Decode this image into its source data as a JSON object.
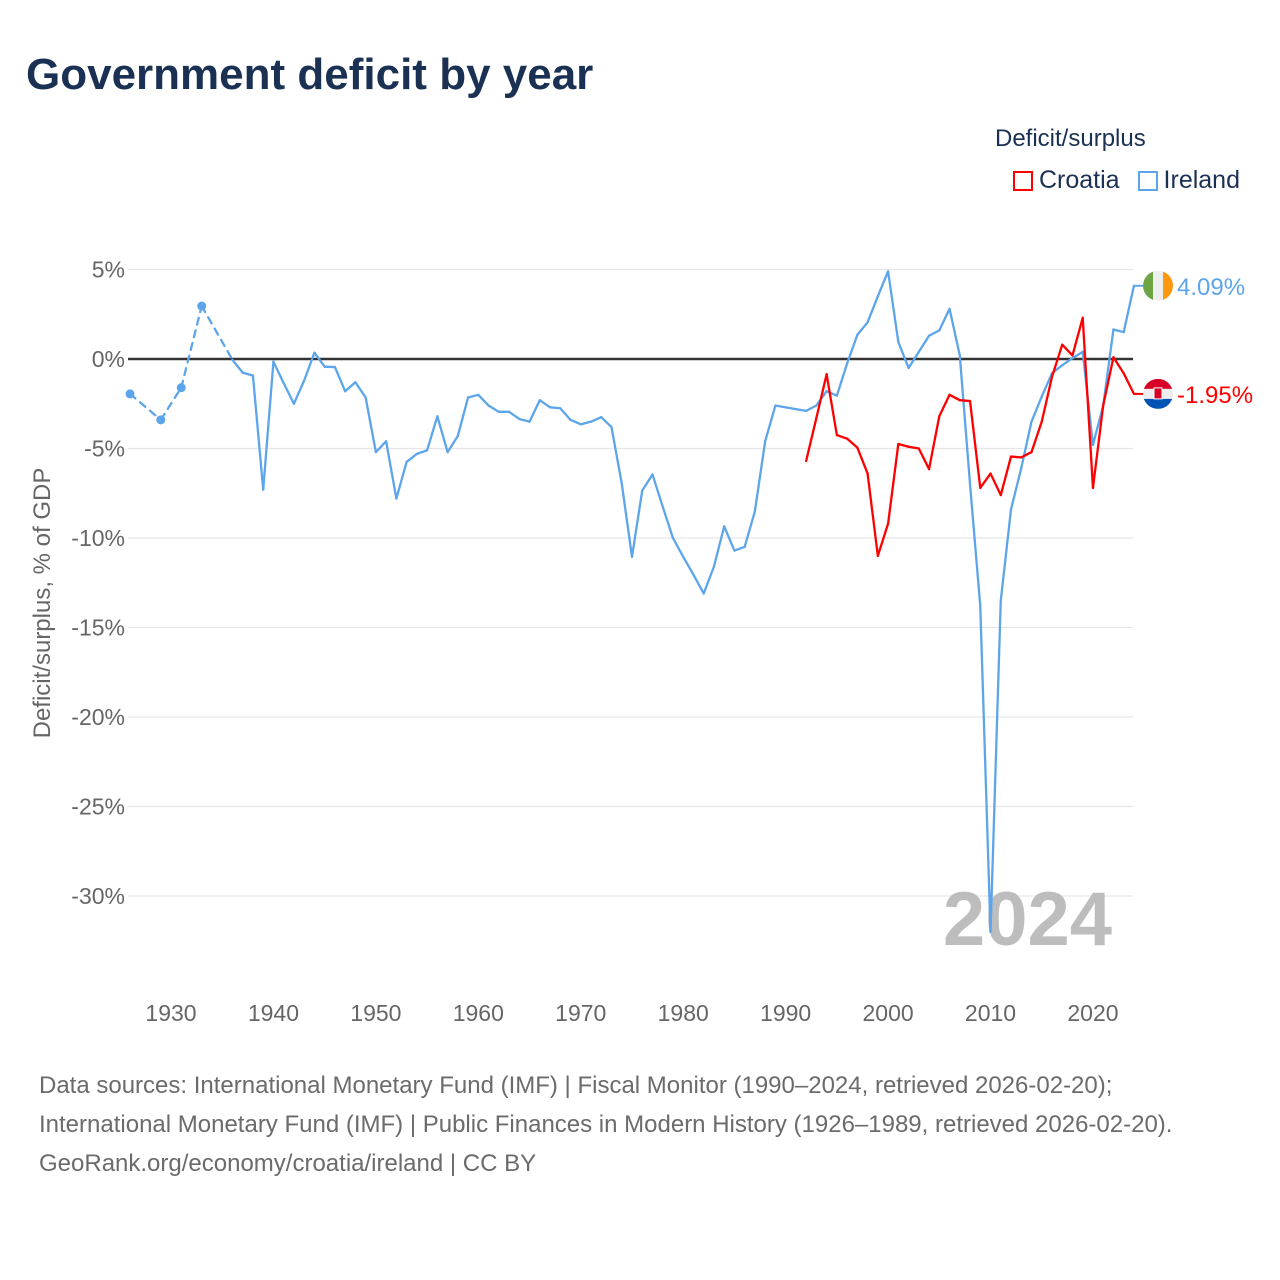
{
  "title": "Government deficit by year",
  "legend": {
    "title": "Deficit/surplus",
    "items": [
      {
        "name": "Croatia",
        "color": "#ff0000"
      },
      {
        "name": "Ireland",
        "color": "#5da5ea"
      }
    ]
  },
  "watermark_year": "2024",
  "footer": {
    "sources": "Data sources: International Monetary Fund (IMF) | Fiscal Monitor (1990–2024, retrieved 2026-02-20); International Monetary Fund (IMF) | Public Finances in Modern History (1926–1989, retrieved 2026-02-20).",
    "credit": "GeoRank.org/economy/croatia/ireland | CC BY"
  },
  "chart_data": {
    "type": "line",
    "title": "Government deficit by year",
    "xlabel": "",
    "ylabel": "Deficit/surplus, % of GDP",
    "xlim": [
      1926,
      2024
    ],
    "ylim": [
      -32,
      5
    ],
    "grid": true,
    "legend_position": "top-right",
    "xticks": [
      1930,
      1940,
      1950,
      1960,
      1970,
      1980,
      1990,
      2000,
      2010,
      2020
    ],
    "yticks": [
      {
        "v": 5,
        "label": "5%"
      },
      {
        "v": 0,
        "label": "0%"
      },
      {
        "v": -5,
        "label": "-5%"
      },
      {
        "v": -10,
        "label": "-10%"
      },
      {
        "v": -15,
        "label": "-15%"
      },
      {
        "v": -20,
        "label": "-20%"
      },
      {
        "v": -25,
        "label": "-25%"
      },
      {
        "v": -30,
        "label": "-30%"
      }
    ],
    "series": [
      {
        "name": "Ireland",
        "color": "#5da5ea",
        "end_label": "4.09%",
        "points": [
          [
            1926,
            -1.95
          ],
          [
            1929,
            -3.4
          ],
          [
            1931,
            -1.6
          ],
          [
            1933,
            2.96
          ],
          [
            1936,
            -0.05
          ],
          [
            1937,
            -0.76
          ],
          [
            1938,
            -0.93
          ],
          [
            1939,
            -7.3
          ],
          [
            1940,
            -0.15
          ],
          [
            1941,
            -1.35
          ],
          [
            1942,
            -2.5
          ],
          [
            1943,
            -1.2
          ],
          [
            1944,
            0.35
          ],
          [
            1945,
            -0.43
          ],
          [
            1946,
            -0.45
          ],
          [
            1947,
            -1.8
          ],
          [
            1948,
            -1.3
          ],
          [
            1949,
            -2.15
          ],
          [
            1950,
            -5.2
          ],
          [
            1951,
            -4.6
          ],
          [
            1952,
            -7.8
          ],
          [
            1953,
            -5.75
          ],
          [
            1954,
            -5.3
          ],
          [
            1955,
            -5.1
          ],
          [
            1956,
            -3.2
          ],
          [
            1957,
            -5.2
          ],
          [
            1958,
            -4.3
          ],
          [
            1959,
            -2.15
          ],
          [
            1960,
            -2.0
          ],
          [
            1961,
            -2.6
          ],
          [
            1962,
            -2.95
          ],
          [
            1963,
            -2.95
          ],
          [
            1964,
            -3.35
          ],
          [
            1965,
            -3.5
          ],
          [
            1966,
            -2.3
          ],
          [
            1967,
            -2.7
          ],
          [
            1968,
            -2.75
          ],
          [
            1969,
            -3.4
          ],
          [
            1970,
            -3.65
          ],
          [
            1971,
            -3.5
          ],
          [
            1972,
            -3.25
          ],
          [
            1973,
            -3.8
          ],
          [
            1974,
            -6.95
          ],
          [
            1975,
            -11.05
          ],
          [
            1976,
            -7.35
          ],
          [
            1977,
            -6.45
          ],
          [
            1978,
            -8.25
          ],
          [
            1979,
            -10.0
          ],
          [
            1980,
            -11.05
          ],
          [
            1981,
            -12.05
          ],
          [
            1982,
            -13.1
          ],
          [
            1983,
            -11.6
          ],
          [
            1984,
            -9.35
          ],
          [
            1985,
            -10.7
          ],
          [
            1986,
            -10.5
          ],
          [
            1987,
            -8.5
          ],
          [
            1988,
            -4.6
          ],
          [
            1989,
            -2.6
          ],
          [
            1990,
            -2.7
          ],
          [
            1991,
            -2.8
          ],
          [
            1992,
            -2.9
          ],
          [
            1993,
            -2.6
          ],
          [
            1994,
            -1.8
          ],
          [
            1995,
            -2.05
          ],
          [
            1996,
            -0.25
          ],
          [
            1997,
            1.35
          ],
          [
            1998,
            2.05
          ],
          [
            1999,
            3.5
          ],
          [
            2000,
            4.9
          ],
          [
            2001,
            0.95
          ],
          [
            2002,
            -0.5
          ],
          [
            2003,
            0.4
          ],
          [
            2004,
            1.3
          ],
          [
            2005,
            1.6
          ],
          [
            2006,
            2.8
          ],
          [
            2007,
            0.2
          ],
          [
            2008,
            -7.0
          ],
          [
            2009,
            -13.8
          ],
          [
            2010,
            -32.0
          ],
          [
            2011,
            -13.5
          ],
          [
            2012,
            -8.4
          ],
          [
            2013,
            -6.1
          ],
          [
            2014,
            -3.5
          ],
          [
            2015,
            -2.1
          ],
          [
            2016,
            -0.8
          ],
          [
            2017,
            -0.35
          ],
          [
            2018,
            0.05
          ],
          [
            2019,
            0.4
          ],
          [
            2020,
            -4.8
          ],
          [
            2021,
            -2.6
          ],
          [
            2022,
            1.65
          ],
          [
            2023,
            1.5
          ],
          [
            2024,
            4.09
          ]
        ]
      },
      {
        "name": "Croatia",
        "color": "#ff0000",
        "end_label": "-1.95%",
        "points": [
          [
            1992,
            -5.7
          ],
          [
            1993,
            -3.3
          ],
          [
            1994,
            -0.85
          ],
          [
            1995,
            -4.25
          ],
          [
            1996,
            -4.45
          ],
          [
            1997,
            -4.95
          ],
          [
            1998,
            -6.4
          ],
          [
            1999,
            -11.0
          ],
          [
            2000,
            -9.2
          ],
          [
            2001,
            -4.75
          ],
          [
            2002,
            -4.9
          ],
          [
            2003,
            -5.0
          ],
          [
            2004,
            -6.15
          ],
          [
            2005,
            -3.2
          ],
          [
            2006,
            -2.0
          ],
          [
            2007,
            -2.3
          ],
          [
            2008,
            -2.35
          ],
          [
            2009,
            -7.2
          ],
          [
            2010,
            -6.4
          ],
          [
            2011,
            -7.6
          ],
          [
            2012,
            -5.45
          ],
          [
            2013,
            -5.5
          ],
          [
            2014,
            -5.2
          ],
          [
            2015,
            -3.5
          ],
          [
            2016,
            -1.0
          ],
          [
            2017,
            0.8
          ],
          [
            2018,
            0.2
          ],
          [
            2019,
            2.3
          ],
          [
            2020,
            -7.2
          ],
          [
            2021,
            -2.6
          ],
          [
            2022,
            0.1
          ],
          [
            2023,
            -0.8
          ],
          [
            2024,
            -1.95
          ]
        ]
      }
    ]
  }
}
